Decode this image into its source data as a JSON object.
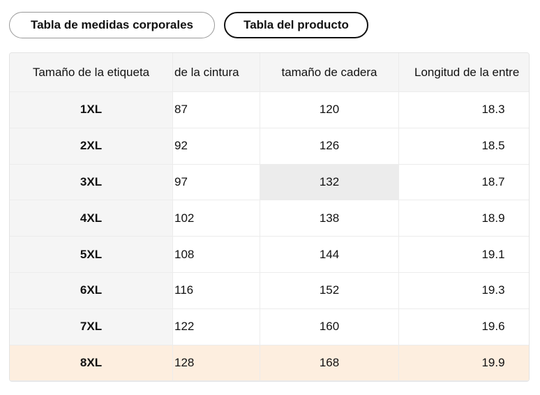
{
  "tabs": [
    "Tabla de medidas corporales",
    "Tabla del producto"
  ],
  "table": {
    "headers": [
      "Tamaño de la etiqueta",
      "de la cintura",
      "tamaño de cadera",
      "Longitud de la entre"
    ],
    "rows": [
      [
        "1XL",
        "87",
        "120",
        "18.3"
      ],
      [
        "2XL",
        "92",
        "126",
        "18.5"
      ],
      [
        "3XL",
        "97",
        "132",
        "18.7"
      ],
      [
        "4XL",
        "102",
        "138",
        "18.9"
      ],
      [
        "5XL",
        "108",
        "144",
        "19.1"
      ],
      [
        "6XL",
        "116",
        "152",
        "19.3"
      ],
      [
        "7XL",
        "122",
        "160",
        "19.6"
      ],
      [
        "8XL",
        "128",
        "168",
        "19.9"
      ]
    ]
  }
}
